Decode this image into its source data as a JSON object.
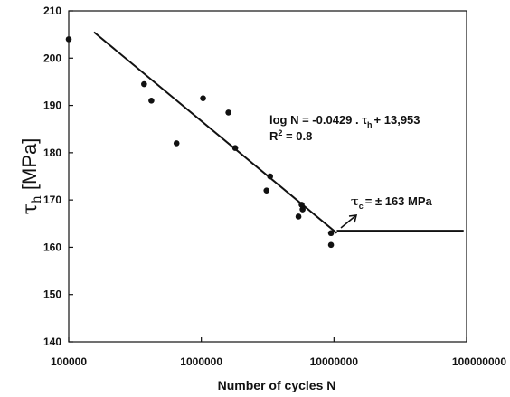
{
  "chart_data": {
    "type": "scatter",
    "xscale": "log",
    "xlim": [
      100000,
      100000000
    ],
    "ylim": [
      140,
      210
    ],
    "x_ticks": [
      "100000",
      "1000000",
      "10000000",
      "100000000"
    ],
    "y_ticks": [
      "140",
      "150",
      "160",
      "170",
      "180",
      "190",
      "200",
      "210"
    ],
    "xlabel": "Number of cycles N",
    "ylabel": {
      "symbol": "τ",
      "sub": "h",
      "unit": " [MPa]"
    },
    "grid": false,
    "legend": "none",
    "points": [
      {
        "x": 100000,
        "y": 204
      },
      {
        "x": 370000,
        "y": 194.5
      },
      {
        "x": 420000,
        "y": 191
      },
      {
        "x": 650000,
        "y": 182
      },
      {
        "x": 1030000,
        "y": 191.5
      },
      {
        "x": 1600000,
        "y": 188.5
      },
      {
        "x": 1800000,
        "y": 181
      },
      {
        "x": 3100000,
        "y": 172
      },
      {
        "x": 3300000,
        "y": 175
      },
      {
        "x": 5400000,
        "y": 166.5
      },
      {
        "x": 5700000,
        "y": 169
      },
      {
        "x": 5800000,
        "y": 168
      },
      {
        "x": 9500000,
        "y": 163
      },
      {
        "x": 9500000,
        "y": 160.5
      }
    ],
    "fit_line": {
      "x": [
        155000,
        10500000
      ],
      "y": [
        205.5,
        163
      ]
    },
    "endurance_line": {
      "x": [
        10500000,
        95000000
      ],
      "y": [
        163.5,
        163.5
      ]
    },
    "annotations": {
      "equation": {
        "prefix": "log N = -0.0429 . τ",
        "sub": "h",
        "suffix": "+ 13,953"
      },
      "r2": {
        "prefix": "R",
        "sup": "2",
        "suffix": " = 0.8"
      },
      "endurance": {
        "symbol": "τ",
        "sub": "c",
        "suffix": "= ± 163 MPa"
      }
    },
    "colors": {
      "marks": "#111111",
      "axes": "#111111",
      "background": "#ffffff"
    }
  }
}
